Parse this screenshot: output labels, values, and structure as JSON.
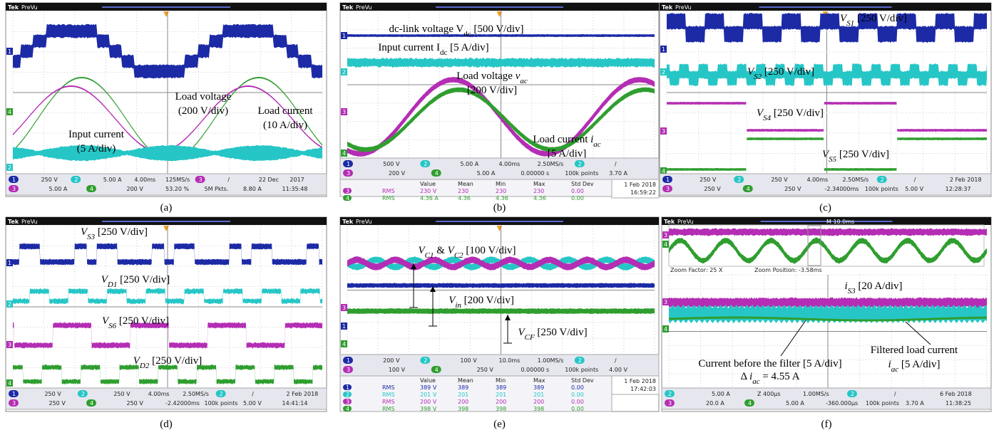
{
  "channel_colors": {
    "1": "#1c2aa6",
    "2": "#26c6c6",
    "3": "#b42db4",
    "4": "#2f9e2f"
  },
  "panels": [
    {
      "caption": "(a)",
      "brand": "Tek",
      "mode": "PreVu",
      "markers": [
        "1",
        "4",
        "2"
      ],
      "annotations": [
        [
          {
            "text": "Load voltage"
          }
        ],
        [
          {
            "text": "(200 V/div)"
          }
        ],
        [
          {
            "text": "Load current"
          }
        ],
        [
          {
            "text": "(10 A/div)"
          }
        ],
        [
          {
            "text": "Input current"
          }
        ],
        [
          {
            "text": "(5 A/div)"
          }
        ]
      ],
      "status": [
        [
          "1",
          "250 V",
          "2",
          "5.00 A",
          "4.00ms",
          "125MS/s",
          "3",
          "/",
          "22 Dec",
          "2017"
        ],
        [
          "3",
          "5.00 A",
          "4",
          "200 V",
          "53.20 %",
          "5M Pkts.",
          "8.80 A",
          "11:35:48"
        ]
      ]
    },
    {
      "caption": "(b)",
      "brand": "Tek",
      "mode": "PreVu",
      "markers": [
        "1",
        "2",
        "3",
        "4"
      ],
      "annotations": [
        [
          {
            "text": "dc-link voltage V"
          },
          {
            "text": "dc",
            "sub": true
          },
          {
            "text": " [500 V/div]"
          }
        ],
        [
          {
            "text": "Input current I"
          },
          {
            "text": "dc",
            "sub": true
          },
          {
            "text": " [5 A/div]"
          }
        ],
        [
          {
            "text": "Load voltage "
          },
          {
            "text": "v",
            "italic": true
          },
          {
            "text": "ac",
            "sub": true,
            "italic": true
          }
        ],
        [
          {
            "text": "[200 V/div]"
          }
        ],
        [
          {
            "text": "Load current "
          },
          {
            "text": "i",
            "italic": true
          },
          {
            "text": "ac",
            "sub": true,
            "italic": true
          }
        ],
        [
          {
            "text": "[5 A/div]"
          }
        ]
      ],
      "status": [
        [
          "1",
          "500 V",
          "2",
          "5.00 A",
          "4.00ms",
          "2.50MS/s",
          "2",
          "/"
        ],
        [
          "3",
          "200 V",
          "4",
          "5.00 A",
          "0.00000 s",
          "100k points",
          "3.70 A"
        ]
      ],
      "table": {
        "header": [
          "Value",
          "Mean",
          "Min",
          "Max",
          "Std Dev"
        ],
        "rows": [
          [
            "3",
            "RMS",
            "230 V",
            "230",
            "230",
            "230",
            "0.00"
          ],
          [
            "4",
            "RMS",
            "4.36 A",
            "4.36",
            "4.36",
            "4.36",
            "0.00"
          ]
        ],
        "side": [
          "1 Feb 2018",
          "16:59:22"
        ]
      }
    },
    {
      "caption": "(c)",
      "brand": "Tek",
      "mode": "PreVu",
      "markers": [
        "1",
        "2",
        "3",
        "4"
      ],
      "annotations": [
        [
          {
            "text": "V",
            "italic": true
          },
          {
            "text": "S1",
            "sub": true,
            "italic": true
          },
          {
            "text": " [250 V/div]"
          }
        ],
        [
          {
            "text": "V",
            "italic": true
          },
          {
            "text": "S2",
            "sub": true,
            "italic": true
          },
          {
            "text": " [250 V/div]"
          }
        ],
        [
          {
            "text": "V",
            "italic": true
          },
          {
            "text": "S4",
            "sub": true,
            "italic": true
          },
          {
            "text": " [250 V/div]"
          }
        ],
        [
          {
            "text": "V",
            "italic": true
          },
          {
            "text": "S5",
            "sub": true,
            "italic": true
          },
          {
            "text": " [250 V/div]"
          }
        ]
      ],
      "status": [
        [
          "1",
          "250 V",
          "2",
          "250 V",
          "4.00ms",
          "2.50MS/s",
          "2",
          "/",
          "2 Feb 2018"
        ],
        [
          "3",
          "250 V",
          "4",
          "250 V",
          "-2.34000ms",
          "100k points",
          "5.00 V",
          "12:28:37"
        ]
      ]
    },
    {
      "caption": "(d)",
      "brand": "Tek",
      "mode": "PreVu",
      "markers": [
        "1",
        "2",
        "3",
        "4"
      ],
      "annotations": [
        [
          {
            "text": "V",
            "italic": true
          },
          {
            "text": "S3",
            "sub": true,
            "italic": true
          },
          {
            "text": " [250 V/div]"
          }
        ],
        [
          {
            "text": "V",
            "italic": true
          },
          {
            "text": "D1",
            "sub": true,
            "italic": true
          },
          {
            "text": " [250 V/div]"
          }
        ],
        [
          {
            "text": "V",
            "italic": true
          },
          {
            "text": "S6",
            "sub": true,
            "italic": true
          },
          {
            "text": " [250 V/div]"
          }
        ],
        [
          {
            "text": "V",
            "italic": true
          },
          {
            "text": "D2",
            "sub": true,
            "italic": true
          },
          {
            "text": " [250 V/div]"
          }
        ]
      ],
      "status": [
        [
          "1",
          "250 V",
          "2",
          "250 V",
          "4.00ms",
          "2.50MS/s",
          "2",
          "/",
          "2 Feb 2018"
        ],
        [
          "3",
          "250 V",
          "4",
          "250 V",
          "-2.42000ms",
          "100k points",
          "5.00 V",
          "14:41:14"
        ]
      ]
    },
    {
      "caption": "(e)",
      "brand": "Tek",
      "mode": "PreVu",
      "markers": [
        "3",
        "1",
        "4"
      ],
      "annotations": [
        [
          {
            "text": "V",
            "italic": true
          },
          {
            "text": "C1",
            "sub": true,
            "italic": true
          },
          {
            "text": " & "
          },
          {
            "text": "V",
            "italic": true
          },
          {
            "text": "C2",
            "sub": true,
            "italic": true
          },
          {
            "text": " [100 V/div]"
          }
        ],
        [
          {
            "text": "V",
            "italic": true
          },
          {
            "text": "in",
            "sub": true,
            "italic": true
          },
          {
            "text": " [200 V/div]"
          }
        ],
        [
          {
            "text": "V",
            "italic": true
          },
          {
            "text": "CF",
            "sub": true,
            "italic": true
          },
          {
            "text": " [250 V/div]"
          }
        ]
      ],
      "status": [
        [
          "1",
          "200 V",
          "2",
          "100 V",
          "10.0ms",
          "1.00MS/s",
          "2",
          "/"
        ],
        [
          "3",
          "100 V",
          "4",
          "250 V",
          "0.00000 s",
          "100k points",
          "4.00 V"
        ]
      ],
      "table": {
        "header": [
          "Value",
          "Mean",
          "Min",
          "Max",
          "Std Dev"
        ],
        "rows": [
          [
            "1",
            "RMS",
            "389 V",
            "389",
            "389",
            "389",
            "0.00"
          ],
          [
            "2",
            "RMS",
            "201 V",
            "201",
            "201",
            "201",
            "0.00"
          ],
          [
            "3",
            "RMS",
            "200 V",
            "200",
            "200",
            "200",
            "0.00"
          ],
          [
            "4",
            "RMS",
            "398 V",
            "398",
            "398",
            "398",
            "0.00"
          ]
        ],
        "side": [
          "1 Feb 2018",
          "17:42:03"
        ]
      }
    },
    {
      "caption": "(f)",
      "brand": "Tek",
      "mode": "PreVu",
      "markers": [
        "3",
        "4",
        "3",
        "4"
      ],
      "zoom": {
        "main": "M 10.0ms",
        "factor": "Zoom Factor: 25 X",
        "position": "Zoom Position: -3.58ms"
      },
      "annotations": [
        [
          {
            "text": "i",
            "italic": true
          },
          {
            "text": "S3",
            "sub": true,
            "italic": true
          },
          {
            "text": " [20 A/div]"
          }
        ],
        [
          {
            "text": "Current before the filter [5 A/div]"
          }
        ],
        [
          {
            "text": "Δ "
          },
          {
            "text": "i",
            "italic": true
          },
          {
            "text": "ac",
            "sub": true,
            "italic": true
          },
          {
            "text": " = 4.55 A"
          }
        ],
        [
          {
            "text": "Filtered load current"
          }
        ],
        [
          {
            "text": "i",
            "italic": true
          },
          {
            "text": "ac",
            "sub": true,
            "italic": true
          },
          {
            "text": "  [5 A/div]"
          }
        ]
      ],
      "status": [
        [
          "2",
          "5.00 A",
          "Z 400µs",
          "1.00MS/s",
          "2",
          "/",
          "6 Feb 2018"
        ],
        [
          "3",
          "20.0 A",
          "4",
          "5.00 A",
          "-360.000µs",
          "100k points",
          "3.70 A",
          "11:38:25"
        ]
      ]
    }
  ]
}
